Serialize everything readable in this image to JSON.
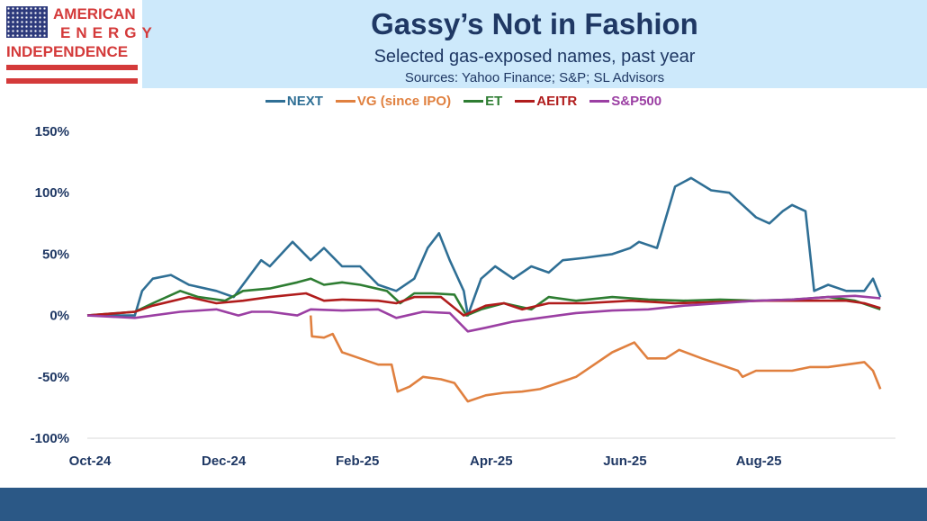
{
  "header": {
    "title": "Gassy’s Not in Fashion",
    "subtitle": "Selected gas-exposed names, past year",
    "sources": "Sources: Yahoo Finance; S&P; SL Advisors"
  },
  "logo": {
    "line1": "AMERICAN",
    "line2": "ENERGY",
    "line3": "INDEPENDENCE"
  },
  "chart_data": {
    "type": "line",
    "title": "Gassy’s Not in Fashion",
    "xlabel": "",
    "ylabel": "",
    "x_unit": "months since Oct-24",
    "xlim": [
      0,
      11.9
    ],
    "ylim": [
      -100,
      150
    ],
    "y_ticks": [
      150,
      100,
      50,
      0,
      -50,
      -100
    ],
    "y_tick_labels": [
      "150%",
      "100%",
      "50%",
      "0%",
      "-50%",
      "-100%"
    ],
    "x_ticks": [
      0,
      2,
      4,
      6,
      8,
      10
    ],
    "x_tick_labels": [
      "Oct-24",
      "Dec-24",
      "Feb-25",
      "Apr-25",
      "Jun-25",
      "Aug-25"
    ],
    "legend_position": "top",
    "series": [
      {
        "name": "NEXT",
        "color": "#2f6f95",
        "points": [
          [
            0,
            0
          ],
          [
            0.71,
            0
          ],
          [
            0.82,
            20
          ],
          [
            0.98,
            30
          ],
          [
            1.25,
            33
          ],
          [
            1.52,
            25
          ],
          [
            1.93,
            20
          ],
          [
            2.19,
            15
          ],
          [
            2.6,
            45
          ],
          [
            2.73,
            40
          ],
          [
            3.07,
            60
          ],
          [
            3.34,
            45
          ],
          [
            3.54,
            55
          ],
          [
            3.81,
            40
          ],
          [
            4.08,
            40
          ],
          [
            4.35,
            25
          ],
          [
            4.62,
            20
          ],
          [
            4.89,
            30
          ],
          [
            5.09,
            55
          ],
          [
            5.26,
            67
          ],
          [
            5.42,
            45
          ],
          [
            5.63,
            20
          ],
          [
            5.69,
            0
          ],
          [
            5.89,
            30
          ],
          [
            6.1,
            40
          ],
          [
            6.37,
            30
          ],
          [
            6.64,
            40
          ],
          [
            6.9,
            35
          ],
          [
            7.11,
            45
          ],
          [
            7.44,
            47
          ],
          [
            7.85,
            50
          ],
          [
            8.12,
            55
          ],
          [
            8.25,
            60
          ],
          [
            8.52,
            55
          ],
          [
            8.79,
            105
          ],
          [
            9.03,
            112
          ],
          [
            9.33,
            102
          ],
          [
            9.6,
            100
          ],
          [
            9.8,
            90
          ],
          [
            10.0,
            80
          ],
          [
            10.2,
            75
          ],
          [
            10.4,
            85
          ],
          [
            10.54,
            90
          ],
          [
            10.74,
            85
          ],
          [
            10.87,
            20
          ],
          [
            11.08,
            25
          ],
          [
            11.35,
            20
          ],
          [
            11.62,
            20
          ],
          [
            11.75,
            30
          ],
          [
            11.86,
            15
          ]
        ]
      },
      {
        "name": "VG (since IPO)",
        "color": "#e0803f",
        "points": [
          [
            3.34,
            0
          ],
          [
            3.36,
            -17
          ],
          [
            3.54,
            -18
          ],
          [
            3.67,
            -15
          ],
          [
            3.81,
            -30
          ],
          [
            4.08,
            -35
          ],
          [
            4.35,
            -40
          ],
          [
            4.55,
            -40
          ],
          [
            4.64,
            -62
          ],
          [
            4.82,
            -58
          ],
          [
            5.02,
            -50
          ],
          [
            5.29,
            -52
          ],
          [
            5.49,
            -55
          ],
          [
            5.69,
            -70
          ],
          [
            5.96,
            -65
          ],
          [
            6.23,
            -63
          ],
          [
            6.5,
            -62
          ],
          [
            6.77,
            -60
          ],
          [
            7.04,
            -55
          ],
          [
            7.31,
            -50
          ],
          [
            7.58,
            -40
          ],
          [
            7.85,
            -30
          ],
          [
            8.18,
            -22
          ],
          [
            8.38,
            -35
          ],
          [
            8.65,
            -35
          ],
          [
            8.85,
            -28
          ],
          [
            9.19,
            -35
          ],
          [
            9.46,
            -40
          ],
          [
            9.73,
            -45
          ],
          [
            9.8,
            -50
          ],
          [
            10.0,
            -45
          ],
          [
            10.27,
            -45
          ],
          [
            10.54,
            -45
          ],
          [
            10.81,
            -42
          ],
          [
            11.08,
            -42
          ],
          [
            11.35,
            -40
          ],
          [
            11.62,
            -38
          ],
          [
            11.75,
            -45
          ],
          [
            11.86,
            -60
          ]
        ]
      },
      {
        "name": "ET",
        "color": "#2e7d32",
        "points": [
          [
            0,
            0
          ],
          [
            0.71,
            3
          ],
          [
            0.98,
            10
          ],
          [
            1.39,
            20
          ],
          [
            1.66,
            15
          ],
          [
            2.06,
            12
          ],
          [
            2.33,
            20
          ],
          [
            2.73,
            22
          ],
          [
            3.14,
            27
          ],
          [
            3.34,
            30
          ],
          [
            3.54,
            25
          ],
          [
            3.81,
            27
          ],
          [
            4.08,
            25
          ],
          [
            4.48,
            20
          ],
          [
            4.68,
            10
          ],
          [
            4.89,
            18
          ],
          [
            5.16,
            18
          ],
          [
            5.49,
            17
          ],
          [
            5.67,
            0
          ],
          [
            5.89,
            5
          ],
          [
            6.23,
            10
          ],
          [
            6.64,
            5
          ],
          [
            6.9,
            15
          ],
          [
            7.31,
            12
          ],
          [
            7.85,
            15
          ],
          [
            8.39,
            13
          ],
          [
            8.92,
            12
          ],
          [
            9.46,
            13
          ],
          [
            10.0,
            12
          ],
          [
            10.54,
            13
          ],
          [
            11.08,
            15
          ],
          [
            11.48,
            12
          ],
          [
            11.86,
            5
          ]
        ]
      },
      {
        "name": "AEITR",
        "color": "#b01c1c",
        "points": [
          [
            0,
            0
          ],
          [
            0.71,
            3
          ],
          [
            0.98,
            8
          ],
          [
            1.52,
            15
          ],
          [
            1.93,
            10
          ],
          [
            2.33,
            12
          ],
          [
            2.73,
            15
          ],
          [
            3.27,
            18
          ],
          [
            3.54,
            12
          ],
          [
            3.81,
            13
          ],
          [
            4.35,
            12
          ],
          [
            4.62,
            10
          ],
          [
            4.89,
            15
          ],
          [
            5.29,
            15
          ],
          [
            5.63,
            0
          ],
          [
            5.96,
            8
          ],
          [
            6.23,
            10
          ],
          [
            6.5,
            5
          ],
          [
            6.9,
            10
          ],
          [
            7.44,
            10
          ],
          [
            8.12,
            12
          ],
          [
            8.79,
            10
          ],
          [
            9.46,
            11
          ],
          [
            10.13,
            12
          ],
          [
            10.81,
            12
          ],
          [
            11.35,
            12
          ],
          [
            11.62,
            10
          ],
          [
            11.86,
            6
          ]
        ]
      },
      {
        "name": "S&P500",
        "color": "#9b3fa3",
        "points": [
          [
            0,
            0
          ],
          [
            0.71,
            -2
          ],
          [
            1.39,
            3
          ],
          [
            1.93,
            5
          ],
          [
            2.26,
            0
          ],
          [
            2.46,
            3
          ],
          [
            2.73,
            3
          ],
          [
            3.14,
            0
          ],
          [
            3.34,
            5
          ],
          [
            3.81,
            4
          ],
          [
            4.35,
            5
          ],
          [
            4.62,
            -2
          ],
          [
            5.02,
            3
          ],
          [
            5.42,
            2
          ],
          [
            5.69,
            -13
          ],
          [
            5.96,
            -10
          ],
          [
            6.37,
            -5
          ],
          [
            6.77,
            -2
          ],
          [
            7.31,
            2
          ],
          [
            7.85,
            4
          ],
          [
            8.39,
            5
          ],
          [
            8.92,
            8
          ],
          [
            9.46,
            10
          ],
          [
            10.0,
            12
          ],
          [
            10.54,
            13
          ],
          [
            11.08,
            15
          ],
          [
            11.48,
            16
          ],
          [
            11.86,
            14
          ]
        ]
      }
    ]
  }
}
